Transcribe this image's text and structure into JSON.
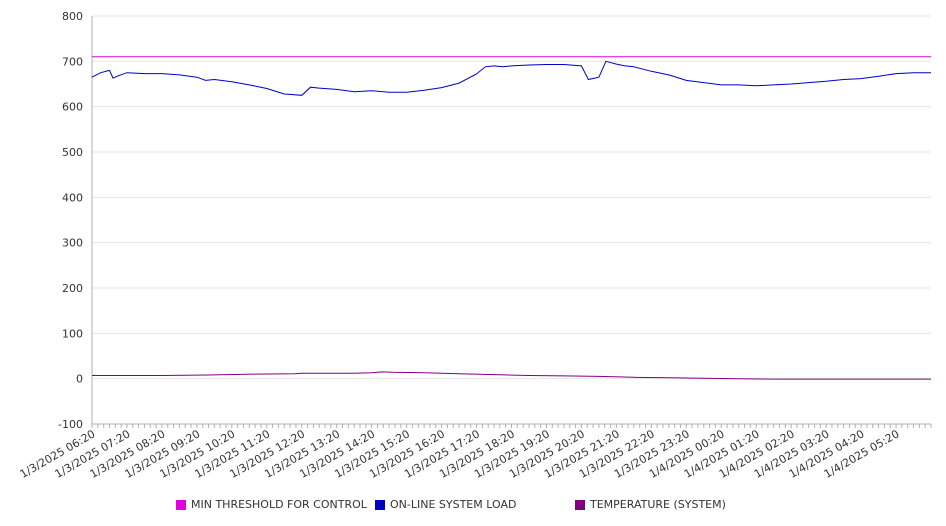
{
  "chart_data": {
    "type": "line",
    "title": "",
    "xlabel": "",
    "ylabel": "",
    "ylim": [
      -100,
      800
    ],
    "yticks": [
      800,
      700,
      600,
      500,
      400,
      300,
      200,
      100,
      0,
      -100
    ],
    "x_tick_labels": [
      "1/3/2025 06:20",
      "1/3/2025 07:20",
      "1/3/2025 08:20",
      "1/3/2025 09:20",
      "1/3/2025 10:20",
      "1/3/2025 11:20",
      "1/3/2025 12:20",
      "1/3/2025 13:20",
      "1/3/2025 14:20",
      "1/3/2025 15:20",
      "1/3/2025 16:20",
      "1/3/2025 17:20",
      "1/3/2025 18:20",
      "1/3/2025 19:20",
      "1/3/2025 20:20",
      "1/3/2025 21:20",
      "1/3/2025 22:20",
      "1/3/2025 23:20",
      "1/4/2025 00:20",
      "1/4/2025 01:20",
      "1/4/2025 02:20",
      "1/4/2025 03:20",
      "1/4/2025 04:20",
      "1/4/2025 05:20"
    ],
    "x_hours": [
      0,
      24
    ],
    "grid": true,
    "legend_position": "bottom",
    "series": [
      {
        "name": "MIN THRESHOLD FOR CONTROL",
        "color": "#e000e0",
        "x": [
          0,
          24
        ],
        "y": [
          710,
          710
        ]
      },
      {
        "name": "ON-LINE SYSTEM LOAD",
        "color": "#0000c8",
        "x": [
          0,
          0.25,
          0.5,
          0.6,
          0.75,
          1.0,
          1.5,
          2.0,
          2.5,
          3.0,
          3.25,
          3.5,
          4.0,
          4.5,
          5.0,
          5.5,
          6.0,
          6.25,
          6.5,
          7.0,
          7.5,
          8.0,
          8.5,
          9.0,
          9.5,
          10.0,
          10.5,
          11.0,
          11.25,
          11.5,
          11.75,
          12.0,
          12.5,
          13.0,
          13.5,
          14.0,
          14.2,
          14.5,
          14.7,
          15.0,
          15.25,
          15.5,
          16.0,
          16.5,
          17.0,
          17.5,
          18.0,
          18.5,
          19.0,
          19.5,
          20.0,
          20.5,
          21.0,
          21.5,
          22.0,
          22.5,
          23.0,
          23.5,
          24.0
        ],
        "y": [
          665,
          675,
          680,
          663,
          668,
          675,
          673,
          673,
          670,
          665,
          658,
          660,
          655,
          648,
          640,
          628,
          625,
          643,
          641,
          638,
          633,
          635,
          632,
          632,
          636,
          642,
          652,
          672,
          688,
          690,
          688,
          690,
          692,
          693,
          693,
          690,
          660,
          665,
          700,
          694,
          690,
          688,
          678,
          670,
          658,
          653,
          648,
          648,
          646,
          648,
          650,
          653,
          656,
          660,
          662,
          667,
          673,
          675,
          675
        ]
      },
      {
        "name": "TEMPERATURE (SYSTEM)",
        "color": "#800080",
        "x": [
          0,
          2,
          3.3,
          4.6,
          5.8,
          6,
          7.5,
          8.0,
          8.3,
          8.6,
          9.5,
          10.5,
          11.5,
          12.5,
          13.5,
          14.5,
          15.5,
          16.5,
          17.5,
          18.5,
          19.5,
          20.5,
          21.5,
          22.5,
          23.5,
          24
        ],
        "y": [
          7,
          7,
          8,
          10,
          11,
          12,
          12,
          13,
          15,
          14,
          13,
          11,
          9,
          7,
          6,
          5,
          3,
          2,
          1,
          0,
          -1,
          -1,
          -1,
          -1,
          -1,
          -1
        ]
      }
    ]
  }
}
